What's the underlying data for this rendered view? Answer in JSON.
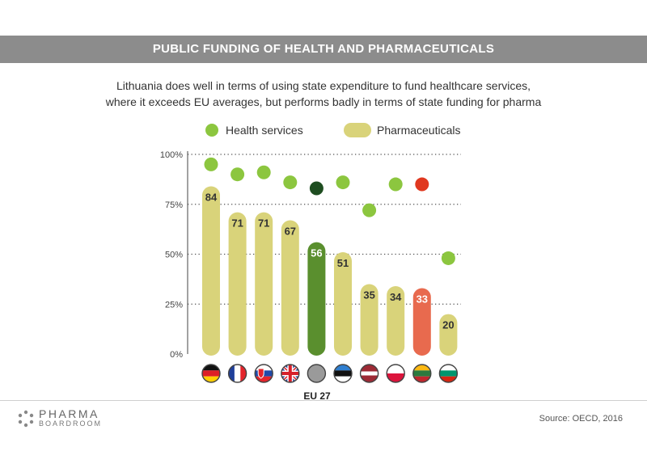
{
  "header": {
    "banner_title": "PUBLIC FUNDING OF HEALTH AND PHARMACEUTICALS",
    "subtitle_line1": "Lithuania does well in terms of using state expenditure to fund healthcare services,",
    "subtitle_line2": "where it exceeds EU averages, but performs badly in terms of state funding for pharma"
  },
  "colors": {
    "banner": "#8c8c8c",
    "pharma_bar": "#d9d37a",
    "health_dot": "#8cc63f",
    "eu_bar": "#5a8f2e",
    "eu_dot": "#1e4d20",
    "lithuania_bar": "#e86a4e",
    "lithuania_dot": "#e0381f",
    "grid": "#555555"
  },
  "chart_data": {
    "type": "bar",
    "categories": [
      "Germany",
      "France",
      "Slovakia",
      "United Kingdom",
      "EU 27",
      "Estonia",
      "Latvia",
      "Poland",
      "Lithuania",
      "Bulgaria"
    ],
    "series": [
      {
        "name": "Pharmaceuticals",
        "values": [
          84,
          71,
          71,
          67,
          56,
          51,
          35,
          34,
          33,
          20
        ]
      },
      {
        "name": "Health services",
        "values": [
          95,
          90,
          91,
          86,
          83,
          86,
          72,
          85,
          85,
          48
        ]
      }
    ],
    "yticks": [
      "100%",
      "75%",
      "50%",
      "25%",
      "0%"
    ],
    "ylim": [
      0,
      100
    ],
    "grid": true,
    "legend_position": "top",
    "highlighted_category_label": "EU 27",
    "flag_icons": [
      "germany-flag-icon",
      "france-flag-icon",
      "slovakia-flag-icon",
      "uk-flag-icon",
      "eu27-grey-circle-icon",
      "estonia-flag-icon",
      "latvia-flag-icon",
      "poland-flag-icon",
      "lithuania-flag-icon",
      "bulgaria-flag-icon"
    ]
  },
  "legend": {
    "health_label": "Health services",
    "pharma_label": "Pharmaceuticals"
  },
  "footer": {
    "logo_word1": "PHARMA",
    "logo_word2": "BOARDROOM",
    "source": "Source: OECD, 2016"
  }
}
